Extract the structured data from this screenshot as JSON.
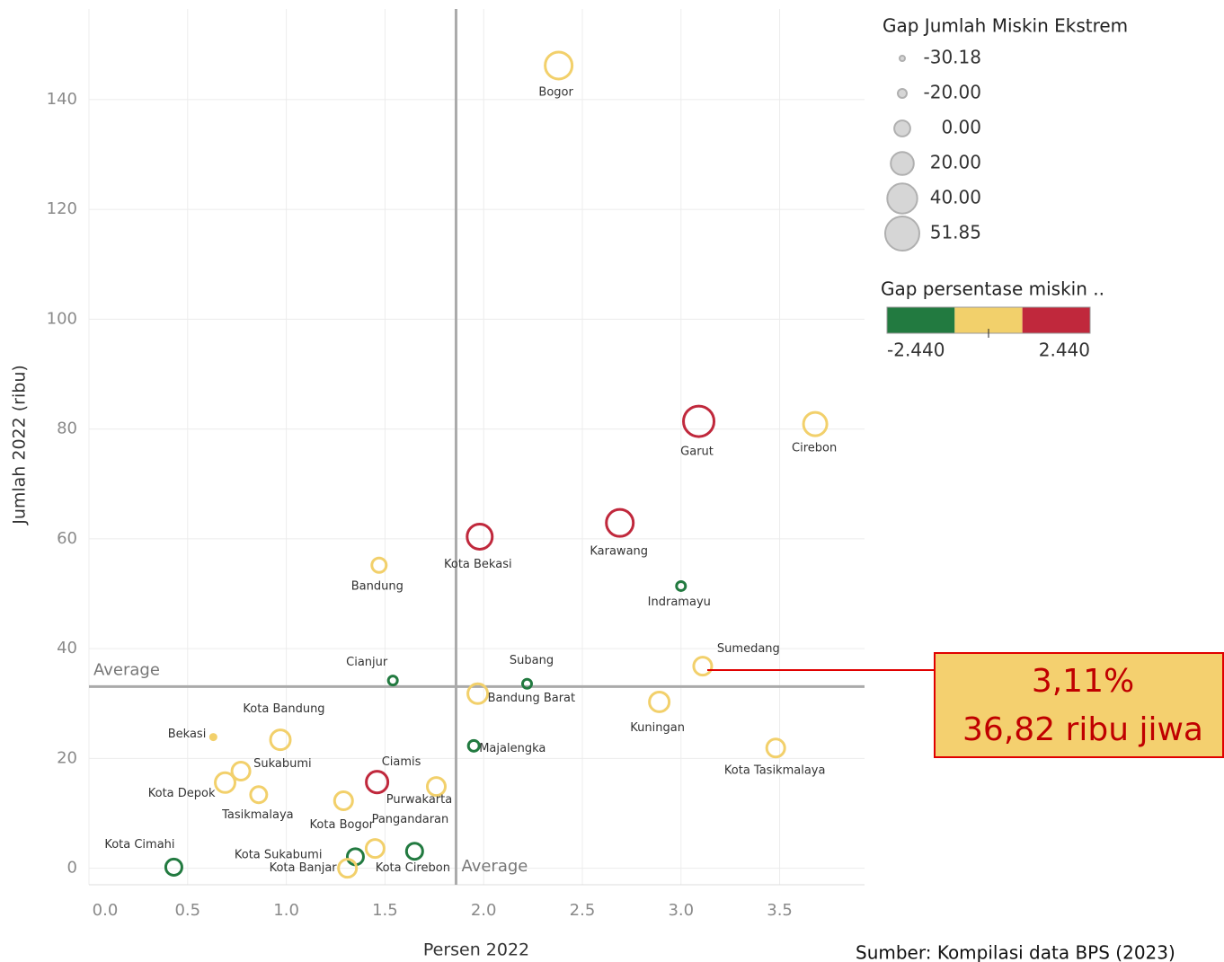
{
  "chart_data": {
    "type": "scatter",
    "x_label": "Persen 2022",
    "y_label": "Jumlah 2022 (ribu)",
    "xlim": [
      0,
      3.93
    ],
    "ylim": [
      -3,
      156.5
    ],
    "xticks": [
      {
        "value": 0,
        "label": "0.0"
      },
      0.5,
      {
        "value": 1,
        "label": "1.0"
      },
      1.5,
      {
        "value": 2,
        "label": "2.0"
      },
      2.5,
      {
        "value": 3,
        "label": "3.0"
      },
      3.5
    ],
    "yticks": [
      0,
      20,
      40,
      60,
      80,
      100,
      120,
      140
    ],
    "grid": true,
    "reference_lines": {
      "label": "Average",
      "x": 1.86,
      "y": 33.1
    },
    "points": [
      {
        "label": "Bogor",
        "x": 2.38,
        "y": 146.2,
        "size": 31.3,
        "color": "#f2d06b"
      },
      {
        "label": "Garut",
        "x": 3.09,
        "y": 81.4,
        "size": 41.6,
        "color": "#c0283c"
      },
      {
        "label": "Cirebon",
        "x": 3.68,
        "y": 80.9,
        "size": 21.1,
        "color": "#f2d06b"
      },
      {
        "label": "Karawang",
        "x": 2.69,
        "y": 62.9,
        "size": 31.3,
        "color": "#c0283c"
      },
      {
        "label": "Kota Bekasi",
        "x": 1.98,
        "y": 60.4,
        "size": 26.2,
        "color": "#c0283c"
      },
      {
        "label": "Bandung",
        "x": 1.47,
        "y": 55.2,
        "size": -4.5,
        "color": "#f2d06b"
      },
      {
        "label": "Indramayu",
        "x": 3.0,
        "y": 51.4,
        "size": -19.9,
        "color": "#227a40"
      },
      {
        "label": "Sumedang",
        "x": 3.11,
        "y": 36.82,
        "size": 5.7,
        "color": "#f2d06b"
      },
      {
        "label": "Cianjur",
        "x": 1.54,
        "y": 34.2,
        "size": -19.9,
        "color": "#227a40"
      },
      {
        "label": "Subang",
        "x": 2.22,
        "y": 33.6,
        "size": -19.9,
        "color": "#227a40"
      },
      {
        "label": "Bandung Barat",
        "x": 1.97,
        "y": 31.8,
        "size": 10.8,
        "color": "#f2d06b"
      },
      {
        "label": "Kuningan",
        "x": 2.89,
        "y": 30.3,
        "size": 10.8,
        "color": "#f2d06b"
      },
      {
        "label": "Kota Tasikmalaya",
        "x": 3.48,
        "y": 21.9,
        "size": 5.7,
        "color": "#f2d06b"
      },
      {
        "label": "Majalengka",
        "x": 1.95,
        "y": 22.3,
        "size": -14.8,
        "color": "#227a40"
      },
      {
        "label": "Bekasi",
        "x": 0.63,
        "y": 23.9,
        "size": -30.18,
        "color": "#f2d06b"
      },
      {
        "label": "Kota Bandung",
        "x": 0.97,
        "y": 23.4,
        "size": 10.8,
        "color": "#f2d06b"
      },
      {
        "label": "Sukabumi",
        "x": 0.77,
        "y": 17.7,
        "size": 5.7,
        "color": "#f2d06b"
      },
      {
        "label": "Kota Depok",
        "x": 0.69,
        "y": 15.6,
        "size": 10.8,
        "color": "#f2d06b"
      },
      {
        "label": "Tasikmalaya",
        "x": 0.86,
        "y": 13.4,
        "size": 0.6,
        "color": "#f2d06b"
      },
      {
        "label": "Ciamis",
        "x": 1.46,
        "y": 15.7,
        "size": 16.0,
        "color": "#c0283c"
      },
      {
        "label": "Purwakarta",
        "x": 1.76,
        "y": 14.9,
        "size": 5.7,
        "color": "#f2d06b"
      },
      {
        "label": "Kota Bogor",
        "x": 1.29,
        "y": 12.3,
        "size": 5.7,
        "color": "#f2d06b"
      },
      {
        "label": "Pangandaran",
        "x": 1.45,
        "y": 3.6,
        "size": 5.7,
        "color": "#f2d06b"
      },
      {
        "label": "Kota Cirebon",
        "x": 1.65,
        "y": 3.1,
        "size": 0.6,
        "color": "#227a40"
      },
      {
        "label": "Kota Sukabumi",
        "x": 1.35,
        "y": 2.1,
        "size": 0.6,
        "color": "#227a40"
      },
      {
        "label": "Kota Banjar",
        "x": 1.31,
        "y": 0,
        "size": 5.7,
        "color": "#f2d06b"
      },
      {
        "label": "Kota Cimahi",
        "x": 0.43,
        "y": 0.2,
        "size": 0.6,
        "color": "#227a40"
      }
    ],
    "size_legend": {
      "title": "Gap Jumlah Miskin Ekstrem",
      "values": [
        {
          "value": -30.18,
          "label": "-30.18"
        },
        {
          "value": -20,
          "label": "-20.00"
        },
        {
          "value": 0,
          "label": "0.00"
        },
        {
          "value": 20,
          "label": "20.00"
        },
        {
          "value": 40,
          "label": "40.00"
        },
        {
          "value": 51.85,
          "label": "51.85"
        }
      ]
    },
    "color_legend": {
      "title": "Gap persentase miskin ..",
      "colors": [
        "#227a40",
        "#f2d06b",
        "#c0283c"
      ],
      "range": [
        {
          "value": -2.44,
          "label": "-2.440"
        },
        {
          "value": 2.44,
          "label": "2.440"
        }
      ]
    },
    "annotation": {
      "lines": [
        "3,11%",
        "36,82 ribu jiwa"
      ]
    },
    "source": "Sumber: Kompilasi data BPS (2023)"
  }
}
